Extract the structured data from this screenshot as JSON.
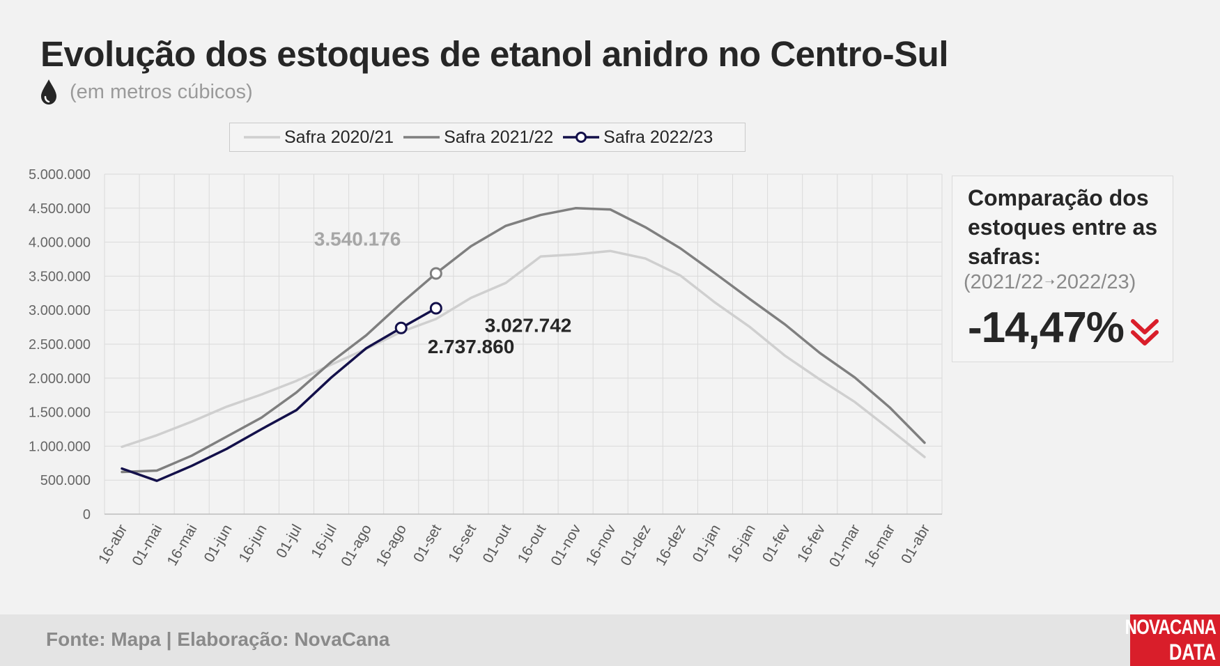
{
  "header": {
    "title": "Evolução dos estoques de etanol anidro no Centro-Sul",
    "subtitle": "(em metros cúbicos)"
  },
  "comparison": {
    "title": "Comparação dos estoques entre as safras:",
    "from": "(2021/22",
    "arrow": "➝",
    "to": "2022/23)",
    "value": "-14,47%"
  },
  "footer": {
    "source": "Fonte: Mapa | Elaboração: NovaCana",
    "logo_line1": "NOVACANA",
    "logo_line2": "DATA"
  },
  "colors": {
    "background": "#f2f2f2",
    "accent_red": "#d91e2a",
    "text_dark": "#262626",
    "muted": "#9a9a9a"
  },
  "chart_data": {
    "type": "line",
    "categories": [
      "16-abr",
      "01-mai",
      "16-mai",
      "01-jun",
      "16-jun",
      "01-jul",
      "16-jul",
      "01-ago",
      "16-ago",
      "01-set",
      "16-set",
      "01-out",
      "16-out",
      "01-nov",
      "16-nov",
      "01-dez",
      "16-dez",
      "01-jan",
      "16-jan",
      "01-fev",
      "16-fev",
      "01-mar",
      "16-mar",
      "01-abr"
    ],
    "ylim": [
      0,
      5000000
    ],
    "yticks": [
      0,
      500000,
      1000000,
      1500000,
      2000000,
      2500000,
      3000000,
      3500000,
      4000000,
      4500000,
      5000000
    ],
    "ytick_labels": [
      "0",
      "500.000",
      "1.000.000",
      "1.500.000",
      "2.000.000",
      "2.500.000",
      "3.000.000",
      "3.500.000",
      "4.000.000",
      "4.500.000",
      "5.000.000"
    ],
    "grid": true,
    "legend_position": "top",
    "series": [
      {
        "name": "Safra 2020/21",
        "color": "#cfcfcf",
        "values": [
          990000,
          1160000,
          1360000,
          1580000,
          1760000,
          1960000,
          2200000,
          2430000,
          2680000,
          2870000,
          3180000,
          3400000,
          3790000,
          3820000,
          3870000,
          3760000,
          3510000,
          3110000,
          2750000,
          2330000,
          1980000,
          1650000,
          1250000,
          840000
        ]
      },
      {
        "name": "Safra 2021/22",
        "color": "#7f7f7f",
        "values": [
          620000,
          640000,
          860000,
          1140000,
          1420000,
          1790000,
          2240000,
          2630000,
          3100000,
          3540176,
          3940000,
          4240000,
          4400000,
          4500000,
          4480000,
          4220000,
          3910000,
          3540000,
          3160000,
          2790000,
          2370000,
          2010000,
          1570000,
          1050000
        ]
      },
      {
        "name": "Safra 2022/23",
        "color": "#13104a",
        "marker": "open-circle",
        "values": [
          670000,
          490000,
          710000,
          960000,
          1250000,
          1530000,
          2010000,
          2440000,
          2737860,
          3027742,
          null,
          null,
          null,
          null,
          null,
          null,
          null,
          null,
          null,
          null,
          null,
          null,
          null,
          null
        ]
      }
    ],
    "annotations": [
      {
        "text": "3.540.176",
        "series": "Safra 2021/22",
        "category": "01-set",
        "value": 3540176,
        "color": "#a6a6a6"
      },
      {
        "text": "3.027.742",
        "series": "Safra 2022/23",
        "category": "01-set",
        "value": 3027742,
        "color": "#262626"
      },
      {
        "text": "2.737.860",
        "series": "Safra 2022/23",
        "category": "16-ago",
        "value": 2737860,
        "color": "#262626"
      }
    ]
  }
}
